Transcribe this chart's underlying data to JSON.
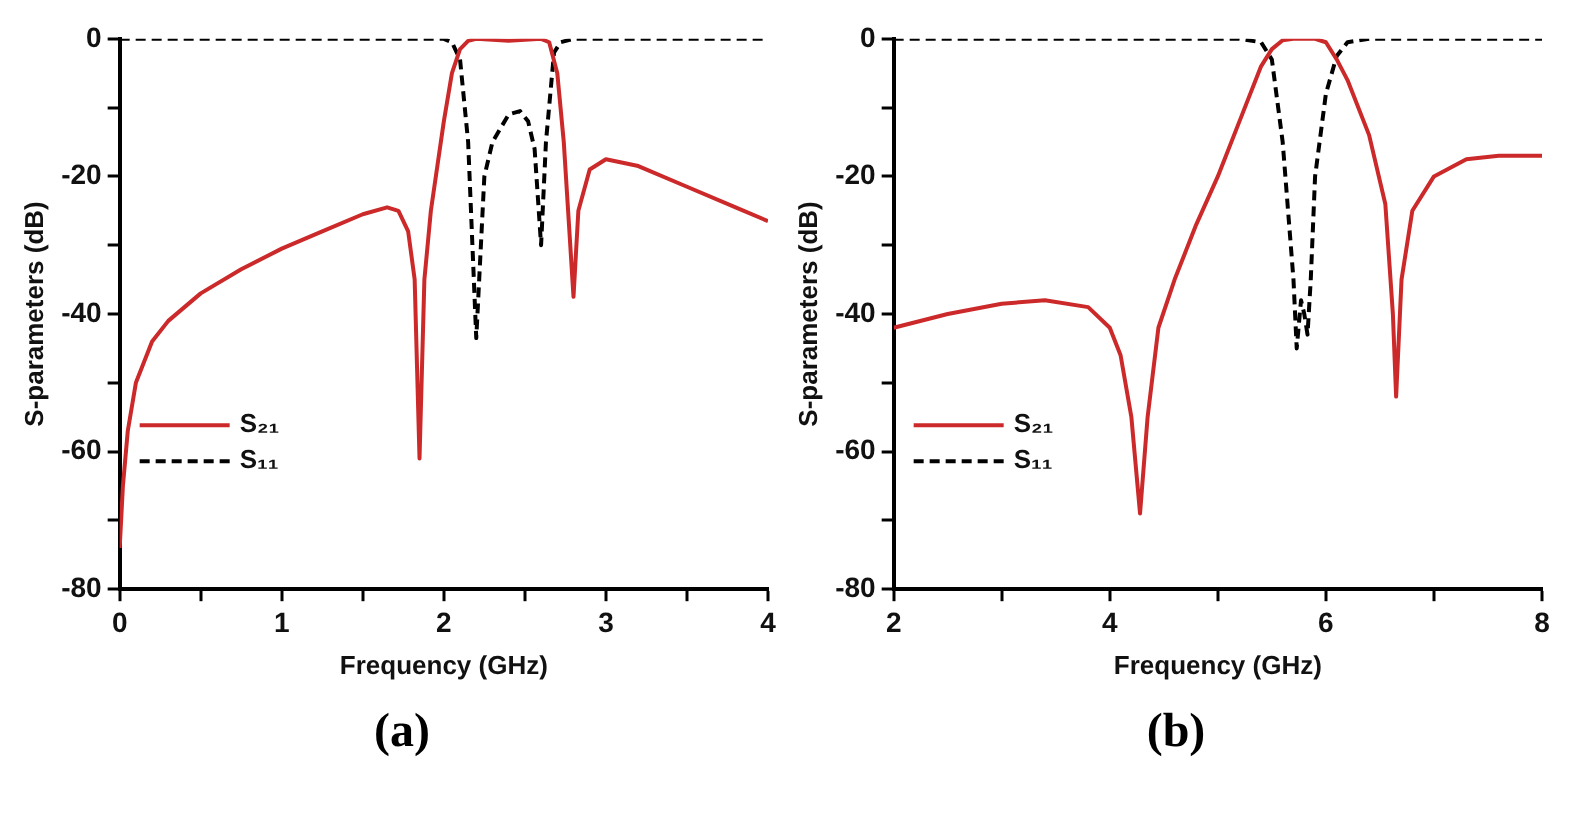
{
  "chart_data": [
    {
      "type": "line",
      "title": "(a)",
      "xlabel": "Frequency (GHz)",
      "ylabel": "S-parameters (dB)",
      "xlim": [
        0,
        4
      ],
      "xticks": [
        0,
        {
          "value": 0.5,
          "label": null
        },
        1,
        {
          "value": 1.5,
          "label": null
        },
        2,
        {
          "value": 2.5,
          "label": null
        },
        3,
        {
          "value": 3.5,
          "label": null
        },
        4
      ],
      "ylim": [
        -80,
        0
      ],
      "yticks": [
        -80,
        {
          "value": -70,
          "label": null
        },
        -60,
        {
          "value": -50,
          "label": null
        },
        -40,
        {
          "value": -30,
          "label": null
        },
        -20,
        {
          "value": -10,
          "label": null
        },
        0
      ],
      "grid": false,
      "legend": "bottom left",
      "marker": "none",
      "series": [
        {
          "name": "S₂₁",
          "color": "#cc2a2a",
          "line_style": "solid",
          "x": [
            0,
            0.02,
            0.05,
            0.1,
            0.2,
            0.3,
            0.5,
            0.75,
            1,
            1.25,
            1.5,
            1.65,
            1.72,
            1.78,
            1.82,
            1.85,
            1.88,
            1.92,
            2,
            2.05,
            2.1,
            2.15,
            2.2,
            2.4,
            2.6,
            2.65,
            2.7,
            2.74,
            2.78,
            2.8,
            2.83,
            2.9,
            3,
            3.2,
            3.5,
            3.8,
            4
          ],
          "values": [
            -74,
            -65,
            -57,
            -50,
            -44,
            -41,
            -37,
            -33.5,
            -30.5,
            -28,
            -25.5,
            -24.5,
            -25,
            -28,
            -35,
            -61,
            -35,
            -25,
            -12,
            -5,
            -1.5,
            -0.3,
            0,
            -0.3,
            0,
            -0.5,
            -5,
            -15,
            -30,
            -37.5,
            -25,
            -19,
            -17.5,
            -18.5,
            -21.5,
            -24.5,
            -26.5
          ]
        },
        {
          "name": "S₁₁",
          "color": "#000000",
          "line_style": "dashed",
          "x": [
            0,
            2,
            2.05,
            2.1,
            2.15,
            2.2,
            2.25,
            2.3,
            2.4,
            2.47,
            2.52,
            2.56,
            2.6,
            2.63,
            2.68,
            2.72,
            2.8,
            4
          ],
          "values": [
            0,
            0,
            -0.5,
            -3,
            -15,
            -43.5,
            -20,
            -15,
            -11,
            -10.5,
            -12,
            -16,
            -30,
            -15,
            -2,
            -0.5,
            0,
            0
          ]
        }
      ]
    },
    {
      "type": "line",
      "title": "(b)",
      "xlabel": "Frequency (GHz)",
      "ylabel": "S-parameters (dB)",
      "xlim": [
        2,
        8
      ],
      "xticks": [
        2,
        {
          "value": 3,
          "label": null
        },
        4,
        {
          "value": 5,
          "label": null
        },
        6,
        {
          "value": 7,
          "label": null
        },
        8
      ],
      "ylim": [
        -80,
        0
      ],
      "yticks": [
        -80,
        {
          "value": -70,
          "label": null
        },
        -60,
        {
          "value": -50,
          "label": null
        },
        -40,
        {
          "value": -30,
          "label": null
        },
        -20,
        {
          "value": -10,
          "label": null
        },
        0
      ],
      "grid": false,
      "legend": "bottom left",
      "marker": "none",
      "series": [
        {
          "name": "S₂₁",
          "color": "#cc2a2a",
          "line_style": "solid",
          "x": [
            2,
            2.5,
            3,
            3.4,
            3.8,
            4,
            4.1,
            4.2,
            4.28,
            4.35,
            4.45,
            4.6,
            4.8,
            5,
            5.2,
            5.4,
            5.5,
            5.6,
            5.7,
            5.9,
            6,
            6.1,
            6.2,
            6.4,
            6.55,
            6.62,
            6.65,
            6.7,
            6.8,
            7,
            7.3,
            7.6,
            8
          ],
          "values": [
            -42,
            -40,
            -38.5,
            -38,
            -39,
            -42,
            -46,
            -55,
            -69,
            -55,
            -42,
            -35,
            -27,
            -20,
            -12,
            -4,
            -1.5,
            -0.2,
            0,
            0,
            -0.5,
            -3,
            -6,
            -14,
            -24,
            -40,
            -52,
            -35,
            -25,
            -20,
            -17.5,
            -17,
            -17
          ]
        },
        {
          "name": "S₁₁",
          "color": "#000000",
          "line_style": "dashed",
          "x": [
            2,
            5.2,
            5.4,
            5.5,
            5.6,
            5.7,
            5.73,
            5.77,
            5.8,
            5.83,
            5.86,
            5.9,
            6,
            6.1,
            6.2,
            6.4,
            8
          ],
          "values": [
            0,
            0,
            -0.5,
            -3,
            -15,
            -35,
            -45,
            -38,
            -40,
            -43,
            -35,
            -20,
            -8,
            -2.5,
            -0.5,
            0,
            0
          ]
        }
      ]
    }
  ]
}
